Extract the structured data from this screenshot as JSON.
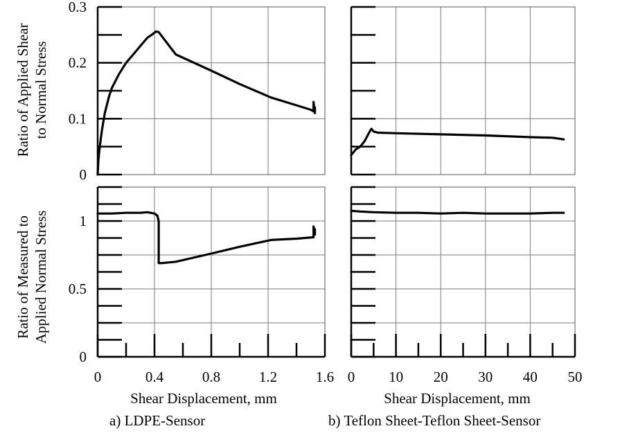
{
  "chart_data": [
    {
      "id": "a_top",
      "type": "line",
      "ylabel_lines": [
        "Ratio of Applied Shear",
        "to Normal Stress"
      ],
      "xlim": [
        0,
        1.6
      ],
      "ylim": [
        0,
        0.3
      ],
      "yticks": [
        0,
        0.1,
        0.2,
        0.3
      ],
      "yticklabels": [
        "0",
        "0.1",
        "0.2",
        "0.3"
      ],
      "grid": true,
      "series": [
        {
          "x": [
            0,
            0.005,
            0.01,
            0.02,
            0.03,
            0.05,
            0.08,
            0.1,
            0.13,
            0.15,
            0.2,
            0.25,
            0.3,
            0.35,
            0.38,
            0.41,
            0.43,
            0.55,
            0.8,
            1.0,
            1.22,
            1.4,
            1.5,
            1.52,
            1.52,
            1.53,
            1.53
          ],
          "y": [
            0,
            0.025,
            0.04,
            0.06,
            0.08,
            0.11,
            0.14,
            0.155,
            0.17,
            0.18,
            0.2,
            0.215,
            0.23,
            0.245,
            0.25,
            0.256,
            0.255,
            0.215,
            0.186,
            0.162,
            0.138,
            0.124,
            0.116,
            0.113,
            0.13,
            0.11,
            0.12
          ]
        }
      ]
    },
    {
      "id": "b_top",
      "type": "line",
      "xlim": [
        0,
        50
      ],
      "ylim": [
        0,
        0.3
      ],
      "grid": true,
      "series": [
        {
          "x": [
            0,
            1,
            2,
            3,
            4,
            4.5,
            5,
            6,
            10,
            20,
            30,
            40,
            45,
            47.5
          ],
          "y": [
            0.035,
            0.045,
            0.05,
            0.06,
            0.075,
            0.082,
            0.077,
            0.075,
            0.074,
            0.072,
            0.07,
            0.067,
            0.066,
            0.063
          ]
        }
      ]
    },
    {
      "id": "a_bottom",
      "type": "line",
      "ylabel_lines": [
        "Ratio of Measured to",
        "Applied Normal Stress"
      ],
      "xlabel": "Shear Displacement, mm",
      "xlim": [
        0,
        1.6
      ],
      "ylim": [
        0,
        1.25
      ],
      "yticks": [
        0,
        0.5,
        1
      ],
      "yticklabels": [
        "0",
        "0.5",
        "1"
      ],
      "xticks": [
        0,
        0.4,
        0.8,
        1.2,
        1.6
      ],
      "xticklabels": [
        "0",
        "0.4",
        "0.8",
        "1.2",
        "1.6"
      ],
      "grid": true,
      "series": [
        {
          "x": [
            0,
            0.1,
            0.2,
            0.3,
            0.35,
            0.4,
            0.42,
            0.43,
            0.43,
            0.45,
            0.55,
            0.8,
            1.0,
            1.22,
            1.4,
            1.52,
            1.52,
            1.53,
            1.53
          ],
          "y": [
            1.055,
            1.055,
            1.06,
            1.06,
            1.065,
            1.055,
            1.04,
            1.0,
            0.69,
            0.69,
            0.7,
            0.76,
            0.81,
            0.86,
            0.87,
            0.88,
            0.96,
            0.9,
            0.94
          ]
        }
      ]
    },
    {
      "id": "b_bottom",
      "type": "line",
      "xlabel": "Shear Displacement, mm",
      "xlim": [
        0,
        50
      ],
      "ylim": [
        0,
        1.25
      ],
      "xticks": [
        0,
        10,
        20,
        30,
        40,
        50
      ],
      "xticklabels": [
        "0",
        "10",
        "20",
        "30",
        "40",
        "50"
      ],
      "grid": true,
      "series": [
        {
          "x": [
            0,
            2,
            5,
            10,
            15,
            20,
            25,
            30,
            35,
            40,
            45,
            47.5
          ],
          "y": [
            1.075,
            1.07,
            1.065,
            1.06,
            1.06,
            1.055,
            1.06,
            1.055,
            1.055,
            1.055,
            1.06,
            1.06
          ]
        }
      ]
    }
  ],
  "captions": {
    "a": "a) LDPE-Sensor",
    "b": "b) Teflon Sheet-Teflon Sheet-Sensor"
  }
}
